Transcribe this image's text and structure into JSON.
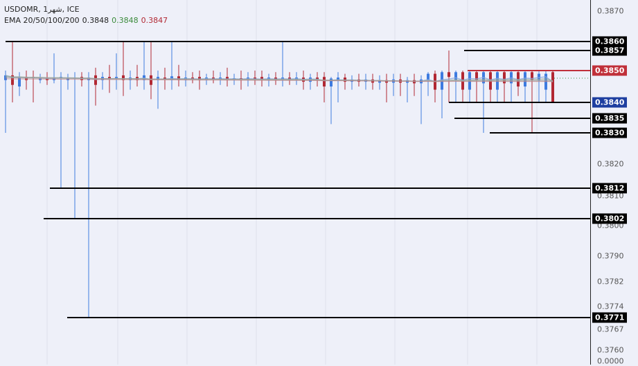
{
  "legend": {
    "symbol": "USDOMR, 1شهر, ICE",
    "ema_label": "EMA 20/50/100/200",
    "ema_values": [
      "0.3848",
      "0.3848",
      "0.3847"
    ]
  },
  "colors": {
    "up": "#3d7be0",
    "down": "#b22833",
    "line": "#000000",
    "resistance": "#c0303a",
    "support_label": "#1e3fa0",
    "ema_green": "#3a8a3a",
    "ema_red": "#b22833"
  },
  "chart_data": {
    "type": "candlestick",
    "y_ticks": [
      "0.3870",
      "0.3820",
      "0.3810",
      "0.3800",
      "0.3790",
      "0.3782",
      "0.3774",
      "0.3767",
      "0.3760",
      "0.0000"
    ],
    "levels": [
      {
        "label": "0.3860",
        "value": 0.386,
        "color": "black"
      },
      {
        "label": "0.3857",
        "value": 0.3857,
        "color": "black"
      },
      {
        "label": "0.3850",
        "value": 0.385,
        "color": "red"
      },
      {
        "label": "0.3840",
        "value": 0.384,
        "color": "blue"
      },
      {
        "label": "0.3835",
        "value": 0.3835,
        "color": "black"
      },
      {
        "label": "0.3830",
        "value": 0.383,
        "color": "black"
      },
      {
        "label": "0.3812",
        "value": 0.3812,
        "color": "black"
      },
      {
        "label": "0.3802",
        "value": 0.3802,
        "color": "black"
      },
      {
        "label": "0.3771",
        "value": 0.3771,
        "color": "black"
      }
    ],
    "candles": [
      [
        0.3847,
        0.385,
        0.383,
        0.38485
      ],
      [
        0.38485,
        0.386,
        0.384,
        0.38455
      ],
      [
        0.3845,
        0.38495,
        0.3842,
        0.3848
      ],
      [
        0.3848,
        0.385,
        0.3844,
        0.3847
      ],
      [
        0.3848,
        0.385,
        0.384,
        0.38478
      ],
      [
        0.3847,
        0.3849,
        0.3846,
        0.38475
      ],
      [
        0.38478,
        0.38495,
        0.38455,
        0.3847
      ],
      [
        0.3847,
        0.3856,
        0.3846,
        0.38478
      ],
      [
        0.38478,
        0.38495,
        0.3812,
        0.3848
      ],
      [
        0.3847,
        0.3849,
        0.3844,
        0.38475
      ],
      [
        0.38475,
        0.38495,
        0.3802,
        0.38478
      ],
      [
        0.3848,
        0.38495,
        0.3845,
        0.3847
      ],
      [
        0.3847,
        0.38495,
        0.3771,
        0.38478
      ],
      [
        0.38485,
        0.3851,
        0.3839,
        0.38455
      ],
      [
        0.3847,
        0.38495,
        0.3844,
        0.3848
      ],
      [
        0.3848,
        0.3852,
        0.3843,
        0.38475
      ],
      [
        0.38475,
        0.3856,
        0.3844,
        0.3848
      ],
      [
        0.38485,
        0.386,
        0.3842,
        0.3847
      ],
      [
        0.3847,
        0.385,
        0.3844,
        0.38478
      ],
      [
        0.3848,
        0.3852,
        0.3845,
        0.3847
      ],
      [
        0.3847,
        0.386,
        0.3844,
        0.38485
      ],
      [
        0.38485,
        0.386,
        0.3841,
        0.38455
      ],
      [
        0.3847,
        0.385,
        0.3838,
        0.3848
      ],
      [
        0.38478,
        0.3851,
        0.3844,
        0.38472
      ],
      [
        0.3847,
        0.386,
        0.3844,
        0.38482
      ],
      [
        0.38482,
        0.3852,
        0.3845,
        0.3847
      ],
      [
        0.3847,
        0.385,
        0.3845,
        0.38478
      ],
      [
        0.38478,
        0.38495,
        0.3846,
        0.38472
      ],
      [
        0.3848,
        0.385,
        0.3844,
        0.3847
      ],
      [
        0.3847,
        0.3849,
        0.38455,
        0.38478
      ],
      [
        0.38478,
        0.385,
        0.3846,
        0.38472
      ],
      [
        0.38472,
        0.38495,
        0.38455,
        0.38478
      ],
      [
        0.3848,
        0.3851,
        0.3845,
        0.3847
      ],
      [
        0.3847,
        0.3849,
        0.38455,
        0.38476
      ],
      [
        0.38476,
        0.385,
        0.3844,
        0.3847
      ],
      [
        0.3847,
        0.38495,
        0.3845,
        0.38478
      ],
      [
        0.38478,
        0.385,
        0.38455,
        0.38472
      ],
      [
        0.3848,
        0.385,
        0.3845,
        0.3847
      ],
      [
        0.3847,
        0.3849,
        0.3845,
        0.38478
      ],
      [
        0.38478,
        0.38495,
        0.38455,
        0.3847
      ],
      [
        0.3847,
        0.386,
        0.3845,
        0.38478
      ],
      [
        0.38478,
        0.38495,
        0.38455,
        0.3847
      ],
      [
        0.3847,
        0.38495,
        0.38455,
        0.38478
      ],
      [
        0.38478,
        0.385,
        0.3844,
        0.38465
      ],
      [
        0.38465,
        0.3849,
        0.3844,
        0.38478
      ],
      [
        0.38478,
        0.38495,
        0.3845,
        0.3847
      ],
      [
        0.3848,
        0.38495,
        0.384,
        0.3845
      ],
      [
        0.3845,
        0.3848,
        0.3833,
        0.38475
      ],
      [
        0.3847,
        0.38495,
        0.384,
        0.38478
      ],
      [
        0.38478,
        0.3849,
        0.3844,
        0.38465
      ],
      [
        0.38465,
        0.38485,
        0.3844,
        0.38472
      ],
      [
        0.38472,
        0.3849,
        0.3845,
        0.38465
      ],
      [
        0.38465,
        0.3849,
        0.3844,
        0.38472
      ],
      [
        0.38472,
        0.3849,
        0.3844,
        0.38462
      ],
      [
        0.38462,
        0.38485,
        0.3844,
        0.3847
      ],
      [
        0.3847,
        0.3849,
        0.384,
        0.38462
      ],
      [
        0.38462,
        0.3849,
        0.3842,
        0.38472
      ],
      [
        0.38472,
        0.3849,
        0.3842,
        0.38462
      ],
      [
        0.38462,
        0.3848,
        0.384,
        0.3847
      ],
      [
        0.3847,
        0.3849,
        0.3842,
        0.3846
      ],
      [
        0.3846,
        0.38485,
        0.3833,
        0.38472
      ],
      [
        0.3847,
        0.38495,
        0.3842,
        0.3849
      ],
      [
        0.3849,
        0.385,
        0.384,
        0.3844
      ],
      [
        0.3844,
        0.385,
        0.3835,
        0.38495
      ],
      [
        0.38495,
        0.3857,
        0.384,
        0.3848
      ],
      [
        0.3847,
        0.385,
        0.384,
        0.38495
      ],
      [
        0.38495,
        0.385,
        0.384,
        0.3844
      ],
      [
        0.3844,
        0.385,
        0.384,
        0.38495
      ],
      [
        0.38495,
        0.385,
        0.384,
        0.3847
      ],
      [
        0.3846,
        0.385,
        0.383,
        0.38495
      ],
      [
        0.38495,
        0.385,
        0.384,
        0.3844
      ],
      [
        0.3844,
        0.385,
        0.384,
        0.38495
      ],
      [
        0.38495,
        0.385,
        0.384,
        0.3846
      ],
      [
        0.3846,
        0.385,
        0.384,
        0.38495
      ],
      [
        0.38495,
        0.385,
        0.3842,
        0.3845
      ],
      [
        0.3845,
        0.385,
        0.384,
        0.38495
      ],
      [
        0.38495,
        0.385,
        0.383,
        0.3847
      ],
      [
        0.3847,
        0.385,
        0.384,
        0.3849
      ],
      [
        0.3844,
        0.385,
        0.384,
        0.3849
      ],
      [
        0.38495,
        0.385,
        0.384,
        0.384
      ]
    ]
  }
}
